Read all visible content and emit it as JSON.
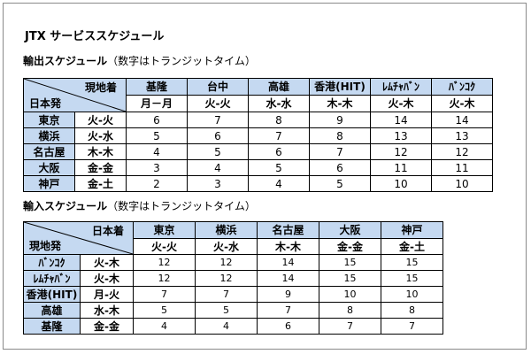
{
  "title": "JTX サービススケジュール",
  "export_section": {
    "heading": "輸出スケジュール",
    "note": "（数字はトランジットタイム）",
    "corner_top": "現地着",
    "corner_bottom": "日本発",
    "columns": [
      {
        "name": "基隆",
        "days": "月－月"
      },
      {
        "name": "台中",
        "days": "火-火"
      },
      {
        "name": "高雄",
        "days": "水-水"
      },
      {
        "name": "香港(HIT)",
        "days": "木-木"
      },
      {
        "name": "ﾚﾑﾁｬﾊﾞﾝ",
        "days": "火-木"
      },
      {
        "name": "ﾊﾞﾝｺｸ",
        "days": "火-木"
      }
    ],
    "rows": [
      {
        "origin": "東京",
        "days": "火-火",
        "values": [
          "6",
          "7",
          "8",
          "9",
          "14",
          "14"
        ]
      },
      {
        "origin": "横浜",
        "days": "火-水",
        "values": [
          "5",
          "6",
          "7",
          "8",
          "13",
          "13"
        ]
      },
      {
        "origin": "名古屋",
        "days": "木-木",
        "values": [
          "4",
          "5",
          "6",
          "7",
          "12",
          "12"
        ]
      },
      {
        "origin": "大阪",
        "days": "金-金",
        "values": [
          "3",
          "4",
          "5",
          "6",
          "11",
          "11"
        ]
      },
      {
        "origin": "神戸",
        "days": "金-土",
        "values": [
          "2",
          "3",
          "4",
          "5",
          "10",
          "10"
        ]
      }
    ]
  },
  "import_section": {
    "heading": "輸入スケジュール",
    "note": "（数字はトランジットタイム）",
    "corner_top": "日本着",
    "corner_bottom": "現地発",
    "columns": [
      {
        "name": "東京",
        "days": "火-火"
      },
      {
        "name": "横浜",
        "days": "火-水"
      },
      {
        "name": "名古屋",
        "days": "木-木"
      },
      {
        "name": "大阪",
        "days": "金-金"
      },
      {
        "name": "神戸",
        "days": "金-土"
      }
    ],
    "rows": [
      {
        "origin": "ﾊﾞﾝｺｸ",
        "days": "火-木",
        "values": [
          "12",
          "12",
          "14",
          "15",
          "15"
        ]
      },
      {
        "origin": "ﾚﾑﾁｬﾊﾞﾝ",
        "days": "火-木",
        "values": [
          "12",
          "12",
          "14",
          "15",
          "15"
        ]
      },
      {
        "origin": "香港(HIT)",
        "days": "月-火",
        "values": [
          "7",
          "7",
          "9",
          "10",
          "10"
        ]
      },
      {
        "origin": "高雄",
        "days": "水-木",
        "values": [
          "5",
          "5",
          "7",
          "8",
          "8"
        ]
      },
      {
        "origin": "基隆",
        "days": "金-金",
        "values": [
          "4",
          "4",
          "6",
          "7",
          "7"
        ]
      }
    ]
  }
}
